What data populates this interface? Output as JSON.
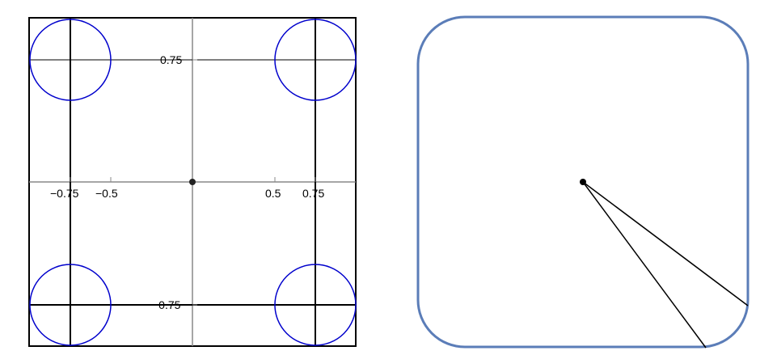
{
  "left_plot": {
    "x_tick_labels": [
      "−0.75",
      "−0.5",
      "0.5",
      "0.75"
    ],
    "y_tick_labels": [
      "0.75",
      "−0.75"
    ],
    "x_tick_values": [
      -0.75,
      -0.5,
      0.5,
      0.75
    ],
    "y_tick_values": [
      0.75,
      -0.75
    ],
    "x_range": [
      -1,
      1
    ],
    "y_range": [
      -1,
      1
    ],
    "circle_centers": [
      [
        -0.75,
        0.75
      ],
      [
        0.75,
        0.75
      ],
      [
        -0.75,
        -0.75
      ],
      [
        0.75,
        -0.75
      ]
    ],
    "circle_radius": 0.25,
    "origin_point": [
      0,
      0
    ],
    "colors": {
      "circle": "#0000cc",
      "axis": "#888888",
      "frame": "#000000"
    }
  },
  "right_panel": {
    "shape": "rounded-square",
    "border_color": "#5b7db8",
    "center_point": "dot",
    "ray_count": 2,
    "line_color": "#000000"
  }
}
